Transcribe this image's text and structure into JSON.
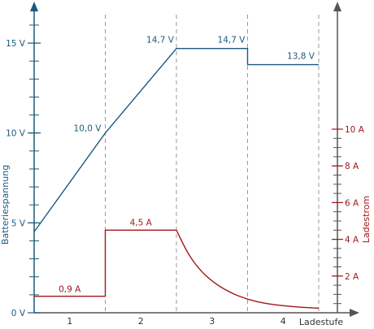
{
  "chart_data": {
    "type": "line",
    "xlabel": "Ladestufe",
    "stages": [
      "1",
      "2",
      "3",
      "4"
    ],
    "stage_boundaries": [
      0,
      1,
      2,
      3,
      4
    ],
    "voltage_axis": {
      "label": "Batteriespannung",
      "range": [
        0,
        16
      ],
      "ticks": [
        {
          "value": 0,
          "label": "0 V"
        },
        {
          "value": 5,
          "label": "5 V"
        },
        {
          "value": 10,
          "label": "10 V"
        },
        {
          "value": 15,
          "label": "15 V"
        }
      ],
      "color": "#1a5a7e"
    },
    "current_axis": {
      "label": "Ladestrom",
      "range": [
        0,
        10
      ],
      "ticks": [
        {
          "value": 2,
          "label": "2 A"
        },
        {
          "value": 4,
          "label": "4 A"
        },
        {
          "value": 6,
          "label": "6 A"
        },
        {
          "value": 8,
          "label": "8 A"
        },
        {
          "value": 10,
          "label": "10 A"
        }
      ],
      "color": "#a3161b"
    },
    "series": [
      {
        "id": "voltage",
        "axis": "voltage",
        "x": [
          0,
          1,
          2,
          3,
          3,
          4
        ],
        "y": [
          4.5,
          10.0,
          14.7,
          14.7,
          13.8,
          13.8
        ]
      },
      {
        "id": "current",
        "axis": "current",
        "x": [
          0,
          1,
          1,
          2,
          2.15,
          2.3,
          2.5,
          2.75,
          3,
          3.25,
          3.5,
          3.75,
          4
        ],
        "y": [
          0.9,
          0.9,
          4.5,
          4.5,
          3.3,
          2.45,
          1.7,
          1.1,
          0.72,
          0.5,
          0.38,
          0.3,
          0.25
        ]
      }
    ],
    "annotations": [
      {
        "series": "voltage",
        "x": 1,
        "y": 10.0,
        "text": "10,0 V"
      },
      {
        "series": "voltage",
        "x": 2,
        "y": 14.7,
        "text": "14,7 V"
      },
      {
        "series": "voltage",
        "x": 3,
        "y": 14.7,
        "text": "14,7 V"
      },
      {
        "series": "voltage",
        "x": 4,
        "y": 13.8,
        "text": "13,8 V"
      },
      {
        "series": "current",
        "x": 0.5,
        "y": 0.9,
        "text": "0,9 A"
      },
      {
        "series": "current",
        "x": 1.5,
        "y": 4.5,
        "text": "4,5 A"
      }
    ],
    "grid": false,
    "stage_dividers": "dashed"
  }
}
